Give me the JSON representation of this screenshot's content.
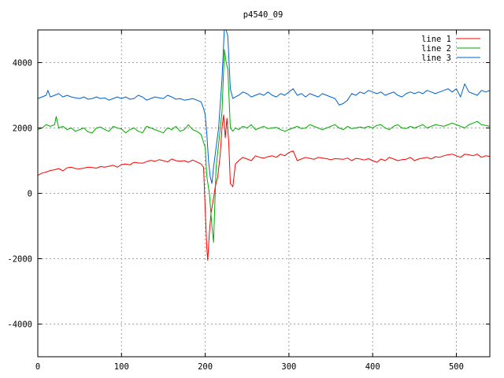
{
  "chart_data": {
    "type": "line",
    "title": "p4540_09",
    "xlabel": "",
    "ylabel": "",
    "xlim": [
      0,
      540
    ],
    "ylim": [
      -5000,
      5000
    ],
    "x_ticks": [
      0,
      100,
      200,
      300,
      400,
      500
    ],
    "y_ticks": [
      -4000,
      -2000,
      0,
      2000,
      4000
    ],
    "grid": true,
    "legend_position": "top-right",
    "series": [
      {
        "name": "line 1",
        "color": "#ff0000",
        "x": [
          0,
          5,
          10,
          15,
          20,
          25,
          30,
          35,
          40,
          45,
          50,
          55,
          60,
          65,
          70,
          75,
          80,
          85,
          90,
          95,
          100,
          105,
          110,
          115,
          120,
          125,
          130,
          135,
          140,
          145,
          150,
          155,
          160,
          165,
          170,
          175,
          180,
          185,
          190,
          195,
          198,
          200,
          202,
          203,
          205,
          207,
          210,
          212,
          215,
          218,
          220,
          222,
          224,
          226,
          228,
          230,
          233,
          236,
          240,
          245,
          250,
          255,
          260,
          265,
          270,
          275,
          280,
          285,
          290,
          295,
          300,
          305,
          310,
          315,
          320,
          325,
          330,
          335,
          340,
          345,
          350,
          355,
          360,
          365,
          370,
          375,
          380,
          385,
          390,
          395,
          400,
          405,
          410,
          415,
          420,
          425,
          430,
          435,
          440,
          445,
          450,
          455,
          460,
          465,
          470,
          475,
          480,
          485,
          490,
          495,
          500,
          505,
          510,
          515,
          520,
          525,
          530,
          535,
          540
        ],
        "values": [
          550,
          620,
          650,
          700,
          720,
          760,
          690,
          780,
          800,
          760,
          750,
          770,
          800,
          790,
          770,
          820,
          800,
          830,
          860,
          800,
          880,
          900,
          870,
          950,
          930,
          920,
          970,
          1010,
          980,
          1030,
          1000,
          960,
          1050,
          1000,
          980,
          1000,
          950,
          1020,
          960,
          900,
          800,
          -500,
          -1700,
          -2050,
          -1200,
          -600,
          -150,
          200,
          500,
          1200,
          2000,
          2400,
          1700,
          2300,
          1600,
          300,
          200,
          900,
          1000,
          1100,
          1050,
          1000,
          1150,
          1100,
          1080,
          1120,
          1150,
          1100,
          1200,
          1150,
          1250,
          1300,
          1000,
          1050,
          1100,
          1070,
          1040,
          1100,
          1080,
          1060,
          1030,
          1060,
          1050,
          1040,
          1080,
          1000,
          1070,
          1050,
          1020,
          1060,
          1000,
          950,
          1050,
          1000,
          1100,
          1050,
          1000,
          1030,
          1040,
          1100,
          1000,
          1050,
          1080,
          1100,
          1050,
          1120,
          1100,
          1150,
          1180,
          1200,
          1150,
          1100,
          1200,
          1180,
          1150,
          1200,
          1100,
          1150,
          1130
        ]
      },
      {
        "name": "line 2",
        "color": "#00aa00",
        "x": [
          0,
          5,
          10,
          15,
          20,
          22,
          25,
          30,
          35,
          40,
          45,
          50,
          55,
          60,
          65,
          70,
          75,
          80,
          85,
          90,
          95,
          100,
          105,
          110,
          115,
          120,
          125,
          130,
          135,
          140,
          145,
          150,
          155,
          160,
          165,
          170,
          175,
          180,
          185,
          190,
          195,
          200,
          202,
          205,
          208,
          210,
          213,
          216,
          220,
          223,
          225,
          227,
          230,
          233,
          236,
          240,
          245,
          250,
          255,
          260,
          265,
          270,
          275,
          280,
          285,
          290,
          295,
          300,
          305,
          310,
          315,
          320,
          325,
          330,
          335,
          340,
          345,
          350,
          355,
          360,
          365,
          370,
          375,
          380,
          385,
          390,
          395,
          400,
          405,
          410,
          415,
          420,
          425,
          430,
          435,
          440,
          445,
          450,
          455,
          460,
          465,
          470,
          475,
          480,
          485,
          490,
          495,
          500,
          505,
          510,
          515,
          520,
          525,
          530,
          535,
          540
        ],
        "values": [
          1950,
          2000,
          2100,
          2050,
          2100,
          2350,
          2000,
          2050,
          1950,
          2000,
          1900,
          1950,
          2000,
          1880,
          1850,
          2000,
          2030,
          1950,
          1900,
          2050,
          2000,
          1970,
          1850,
          1950,
          2000,
          1900,
          1850,
          2050,
          2000,
          1950,
          1900,
          1850,
          2000,
          1950,
          2050,
          1900,
          1950,
          2100,
          1950,
          1900,
          1800,
          1400,
          500,
          0,
          -1000,
          -1500,
          800,
          1500,
          2500,
          4400,
          4000,
          3800,
          2000,
          1900,
          2000,
          1950,
          2050,
          2000,
          2100,
          1950,
          2000,
          2050,
          1980,
          2000,
          2020,
          1950,
          1900,
          1950,
          2000,
          2050,
          1980,
          2000,
          2100,
          2050,
          2000,
          1950,
          2000,
          2050,
          2100,
          2000,
          1950,
          2050,
          1980,
          2000,
          2030,
          2000,
          2050,
          2000,
          2080,
          2100,
          2000,
          1950,
          2050,
          2100,
          2000,
          1980,
          2050,
          2000,
          2050,
          2100,
          2000,
          2050,
          2100,
          2080,
          2050,
          2100,
          2150,
          2100,
          2050,
          2000,
          2100,
          2150,
          2200,
          2100,
          2080,
          2050
        ]
      },
      {
        "name": "line 3",
        "color": "#0060d0",
        "x": [
          0,
          5,
          10,
          12,
          15,
          20,
          25,
          30,
          35,
          40,
          45,
          50,
          55,
          60,
          65,
          70,
          75,
          80,
          85,
          90,
          95,
          100,
          105,
          110,
          115,
          120,
          125,
          130,
          135,
          140,
          145,
          150,
          155,
          160,
          165,
          170,
          175,
          180,
          185,
          190,
          195,
          198,
          200,
          202,
          204,
          206,
          208,
          210,
          213,
          216,
          220,
          223,
          225,
          227,
          230,
          233,
          236,
          240,
          245,
          250,
          255,
          260,
          265,
          270,
          275,
          280,
          285,
          290,
          295,
          300,
          305,
          310,
          315,
          320,
          325,
          330,
          335,
          340,
          345,
          350,
          355,
          360,
          365,
          370,
          375,
          380,
          385,
          390,
          395,
          400,
          405,
          410,
          415,
          420,
          425,
          430,
          435,
          440,
          445,
          450,
          455,
          460,
          465,
          470,
          475,
          480,
          485,
          490,
          495,
          500,
          505,
          510,
          515,
          520,
          525,
          530,
          535,
          540
        ],
        "values": [
          2900,
          2950,
          3000,
          3150,
          2950,
          3000,
          3050,
          2950,
          3000,
          2950,
          2920,
          2900,
          2950,
          2880,
          2900,
          2950,
          2900,
          2920,
          2850,
          2900,
          2950,
          2900,
          2950,
          2880,
          2900,
          3000,
          2950,
          2850,
          2900,
          2950,
          2920,
          2900,
          3000,
          2950,
          2880,
          2900,
          2850,
          2870,
          2900,
          2850,
          2800,
          2600,
          2400,
          1800,
          1000,
          500,
          300,
          800,
          1400,
          2000,
          3500,
          5100,
          5000,
          4800,
          3200,
          2900,
          2950,
          3000,
          3100,
          3050,
          2950,
          3000,
          3050,
          3000,
          3100,
          3000,
          2950,
          3050,
          3000,
          3100,
          3200,
          3000,
          3050,
          2950,
          3050,
          3000,
          2950,
          3050,
          3000,
          2950,
          2900,
          2700,
          2750,
          2850,
          3050,
          3000,
          3100,
          3050,
          3150,
          3100,
          3050,
          3100,
          3000,
          3050,
          3100,
          3000,
          2950,
          3050,
          3100,
          3050,
          3100,
          3050,
          3150,
          3100,
          3050,
          3100,
          3150,
          3200,
          3100,
          3200,
          2950,
          3350,
          3100,
          3050,
          3000,
          3150,
          3100,
          3150
        ]
      }
    ]
  }
}
